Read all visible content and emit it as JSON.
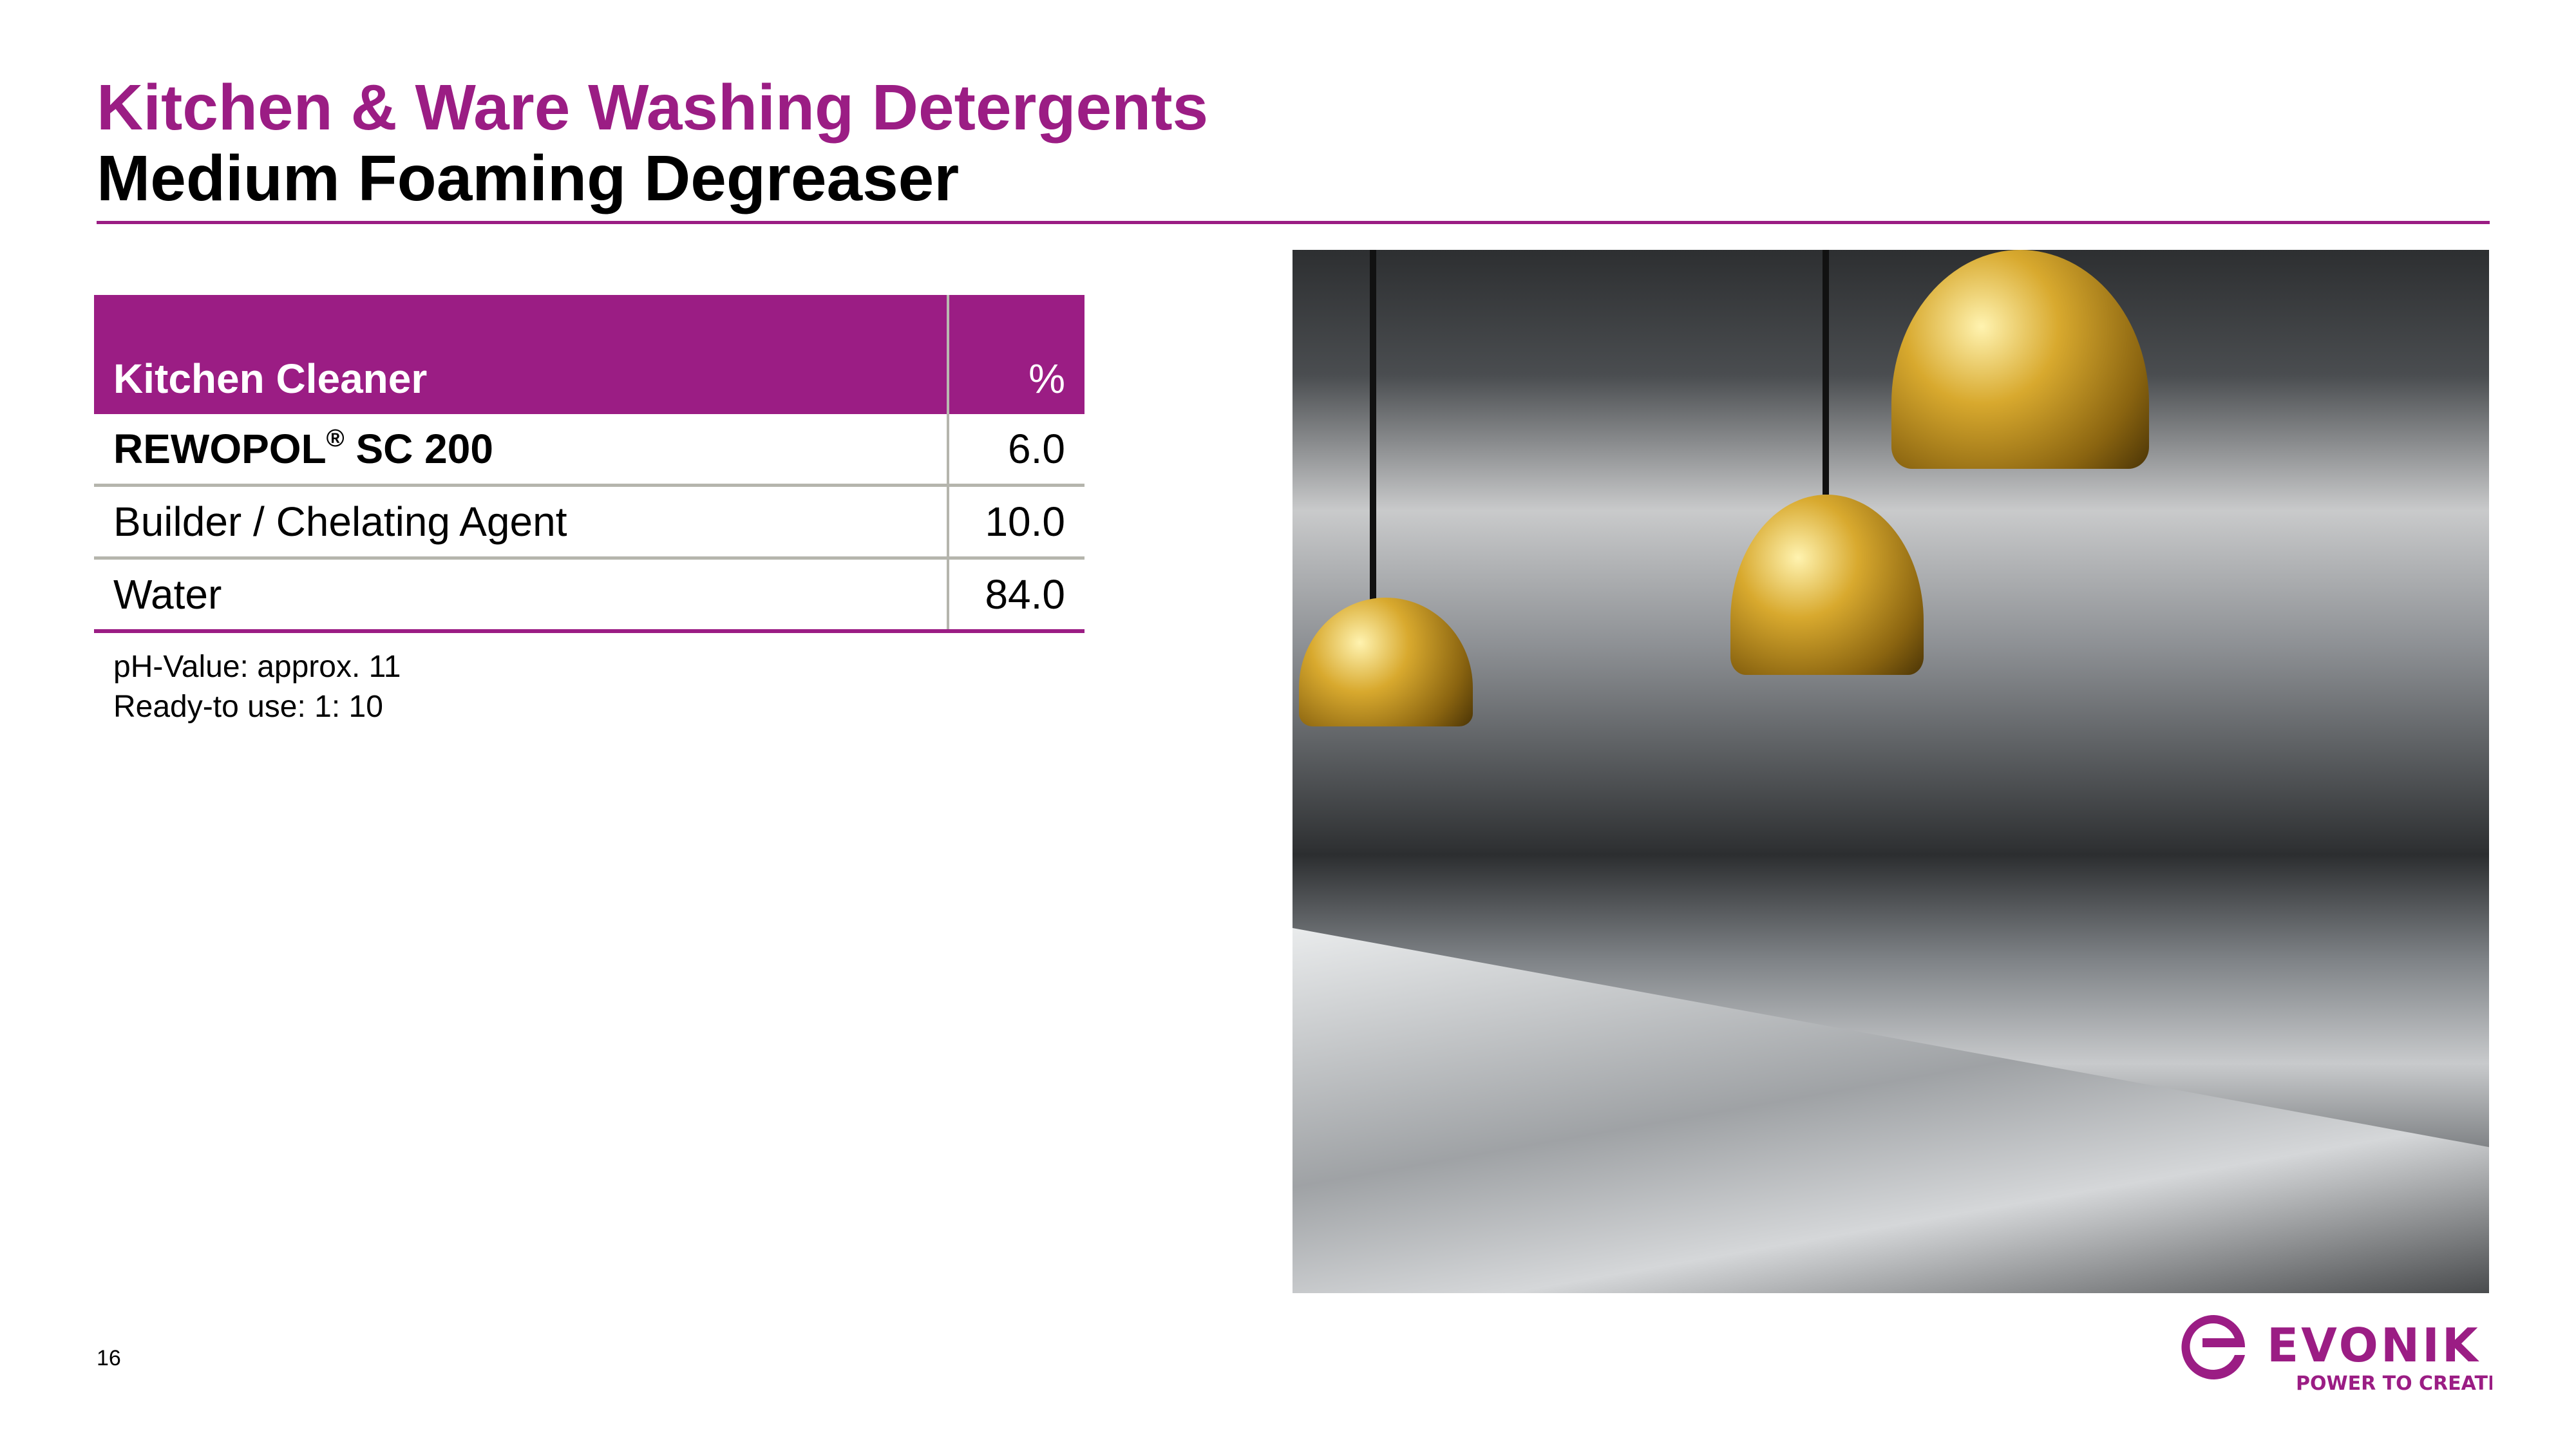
{
  "colors": {
    "accent": "#9b1d84",
    "divider": "#b5b5ad"
  },
  "header": {
    "title": "Kitchen & Ware Washing Detergents",
    "subtitle": "Medium Foaming Degreaser"
  },
  "table": {
    "headers": [
      "Kitchen Cleaner",
      "%"
    ],
    "rows": [
      {
        "name": "REWOPOL",
        "registered": "®",
        "name_suffix": " SC 200",
        "value": "6.0"
      },
      {
        "name": "Builder / Chelating Agent",
        "value": "10.0"
      },
      {
        "name": "Water",
        "value": "84.0"
      }
    ]
  },
  "notes": [
    "pH-Value: approx. 11",
    "Ready-to use: 1: 10"
  ],
  "photo": {
    "subject": "commercial-kitchen-heat-lamps-photo"
  },
  "footer": {
    "page_number": "16",
    "logo": {
      "brand": "EVONIK",
      "tagline": "POWER TO CREATE"
    }
  }
}
